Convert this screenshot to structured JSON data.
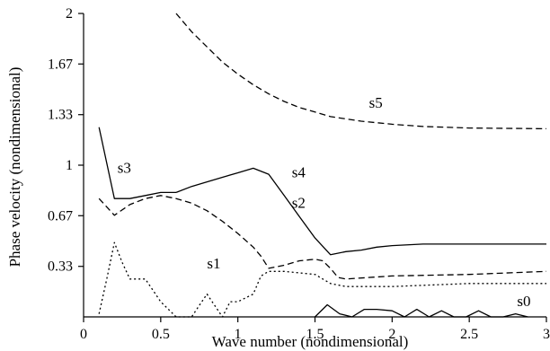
{
  "chart_data": {
    "type": "line",
    "xlabel": "Wave number (nondimensional)",
    "ylabel": "Phase velocity (nondimensional)",
    "xlim": [
      0,
      3
    ],
    "ylim": [
      0,
      2
    ],
    "x_ticks": [
      0,
      0.5,
      1,
      1.5,
      2,
      2.5,
      3
    ],
    "x_tick_labels": [
      "0",
      "0.5",
      "1",
      "1.5",
      "2",
      "2.5",
      "3"
    ],
    "y_ticks": [
      0.333,
      0.667,
      1,
      1.333,
      1.667,
      2
    ],
    "y_tick_labels": [
      "0.33",
      "0.67",
      "1",
      "1.33",
      "1.67",
      "2"
    ],
    "grid": false,
    "series": [
      {
        "name": "s0",
        "style": "solid",
        "points": [
          [
            1.5,
            0
          ],
          [
            1.58,
            0.08
          ],
          [
            1.66,
            0.02
          ],
          [
            1.74,
            0.0
          ],
          [
            1.82,
            0.05
          ],
          [
            1.9,
            0.05
          ],
          [
            2.0,
            0.04
          ],
          [
            2.08,
            0.0
          ],
          [
            2.16,
            0.05
          ],
          [
            2.24,
            0.0
          ],
          [
            2.32,
            0.04
          ],
          [
            2.4,
            0.0
          ],
          [
            2.48,
            0.0
          ],
          [
            2.56,
            0.04
          ],
          [
            2.64,
            0.0
          ],
          [
            2.72,
            0.0
          ],
          [
            2.8,
            0.02
          ],
          [
            2.88,
            0.0
          ]
        ]
      },
      {
        "name": "s1",
        "style": "dotted",
        "points": [
          [
            0.1,
            0.02
          ],
          [
            0.15,
            0.25
          ],
          [
            0.2,
            0.49
          ],
          [
            0.25,
            0.36
          ],
          [
            0.3,
            0.25
          ],
          [
            0.4,
            0.25
          ],
          [
            0.5,
            0.1
          ],
          [
            0.6,
            0.0
          ],
          [
            0.7,
            0.0
          ],
          [
            0.8,
            0.15
          ],
          [
            0.9,
            0.0
          ],
          [
            0.95,
            0.1
          ],
          [
            1.0,
            0.1
          ],
          [
            1.1,
            0.15
          ],
          [
            1.15,
            0.27
          ],
          [
            1.2,
            0.3
          ],
          [
            1.3,
            0.3
          ],
          [
            1.5,
            0.28
          ],
          [
            1.6,
            0.22
          ],
          [
            1.7,
            0.2
          ],
          [
            1.8,
            0.2
          ],
          [
            2.0,
            0.2
          ],
          [
            2.5,
            0.22
          ],
          [
            3.0,
            0.22
          ]
        ]
      },
      {
        "name": "s2",
        "style": "dashed",
        "points": [
          [
            0.1,
            0.78
          ],
          [
            0.2,
            0.67
          ],
          [
            0.3,
            0.74
          ],
          [
            0.4,
            0.78
          ],
          [
            0.5,
            0.8
          ],
          [
            0.6,
            0.78
          ],
          [
            0.7,
            0.75
          ],
          [
            0.8,
            0.7
          ],
          [
            0.9,
            0.63
          ],
          [
            1.0,
            0.55
          ],
          [
            1.1,
            0.46
          ],
          [
            1.15,
            0.4
          ],
          [
            1.2,
            0.32
          ],
          [
            1.3,
            0.34
          ],
          [
            1.4,
            0.37
          ],
          [
            1.5,
            0.38
          ],
          [
            1.55,
            0.37
          ],
          [
            1.6,
            0.32
          ],
          [
            1.65,
            0.26
          ],
          [
            1.7,
            0.25
          ],
          [
            2.0,
            0.27
          ],
          [
            2.5,
            0.28
          ],
          [
            3.0,
            0.3
          ]
        ]
      },
      {
        "name": "s3",
        "style": "solid",
        "points": [
          [
            0.1,
            1.25
          ],
          [
            0.2,
            0.78
          ],
          [
            0.3,
            0.78
          ],
          [
            0.4,
            0.8
          ],
          [
            0.5,
            0.82
          ],
          [
            0.6,
            0.82
          ]
        ]
      },
      {
        "name": "s4",
        "style": "solid",
        "points": [
          [
            0.6,
            0.82
          ],
          [
            0.7,
            0.86
          ],
          [
            0.8,
            0.89
          ],
          [
            0.9,
            0.92
          ],
          [
            1.0,
            0.95
          ],
          [
            1.1,
            0.98
          ],
          [
            1.2,
            0.94
          ],
          [
            1.3,
            0.8
          ],
          [
            1.4,
            0.66
          ],
          [
            1.5,
            0.52
          ],
          [
            1.6,
            0.41
          ],
          [
            1.7,
            0.43
          ],
          [
            1.8,
            0.44
          ],
          [
            1.9,
            0.46
          ],
          [
            2.0,
            0.47
          ],
          [
            2.2,
            0.48
          ],
          [
            2.5,
            0.48
          ],
          [
            3.0,
            0.48
          ]
        ]
      },
      {
        "name": "s5",
        "style": "dashed",
        "points": [
          [
            0.6,
            2.0
          ],
          [
            0.7,
            1.88
          ],
          [
            0.8,
            1.78
          ],
          [
            0.9,
            1.68
          ],
          [
            1.0,
            1.6
          ],
          [
            1.1,
            1.53
          ],
          [
            1.2,
            1.47
          ],
          [
            1.3,
            1.42
          ],
          [
            1.4,
            1.38
          ],
          [
            1.5,
            1.35
          ],
          [
            1.6,
            1.32
          ],
          [
            1.8,
            1.29
          ],
          [
            2.0,
            1.27
          ],
          [
            2.2,
            1.255
          ],
          [
            2.5,
            1.245
          ],
          [
            3.0,
            1.24
          ]
        ]
      }
    ],
    "annotations": [
      {
        "text": "s0",
        "x": 2.81,
        "y": 0.07
      },
      {
        "text": "s1",
        "x": 0.8,
        "y": 0.32
      },
      {
        "text": "s2",
        "x": 1.35,
        "y": 0.72
      },
      {
        "text": "s3",
        "x": 0.22,
        "y": 0.95
      },
      {
        "text": "s4",
        "x": 1.35,
        "y": 0.92
      },
      {
        "text": "s5",
        "x": 1.85,
        "y": 1.38
      }
    ]
  }
}
